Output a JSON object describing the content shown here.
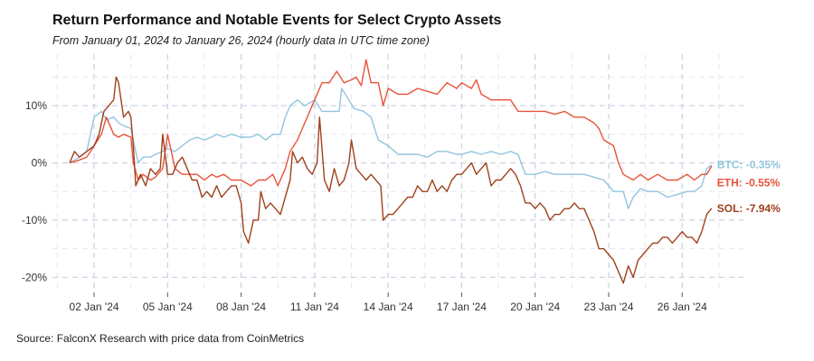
{
  "chart_data": {
    "type": "line",
    "title": "Return Performance and Notable Events for Select Crypto Assets",
    "subtitle": "From January 01, 2024 to January 26, 2024 (hourly data in UTC time zone)",
    "source": "Source: FalconX Research with price data from CoinMetrics",
    "xlabel": "",
    "ylabel": "",
    "x_ticks": [
      {
        "day": 2,
        "label": "02 Jan '24"
      },
      {
        "day": 5,
        "label": "05 Jan '24"
      },
      {
        "day": 8,
        "label": "08 Jan '24"
      },
      {
        "day": 11,
        "label": "11 Jan '24"
      },
      {
        "day": 14,
        "label": "14 Jan '24"
      },
      {
        "day": 17,
        "label": "17 Jan '24"
      },
      {
        "day": 20,
        "label": "20 Jan '24"
      },
      {
        "day": 23,
        "label": "23 Jan '24"
      },
      {
        "day": 26,
        "label": "26 Jan '24"
      }
    ],
    "xlim": [
      0.3,
      28.5
    ],
    "y_ticks": [
      {
        "value": 10,
        "label": "10%"
      },
      {
        "value": 0,
        "label": "0%"
      },
      {
        "value": -10,
        "label": "-10%"
      },
      {
        "value": -20,
        "label": "-20%"
      }
    ],
    "ylim": [
      -22,
      19
    ],
    "grid": true,
    "series": [
      {
        "name": "BTC",
        "color": "#92c5de",
        "end_label": "BTC: -0.35%",
        "points": [
          [
            1,
            0
          ],
          [
            1.4,
            1
          ],
          [
            1.7,
            2
          ],
          [
            2,
            8
          ],
          [
            2.3,
            9
          ],
          [
            2.5,
            7.5
          ],
          [
            2.8,
            8
          ],
          [
            3,
            7
          ],
          [
            3.2,
            6.5
          ],
          [
            3.5,
            6
          ],
          [
            3.6,
            4
          ],
          [
            3.8,
            0
          ],
          [
            4,
            1
          ],
          [
            4.3,
            1
          ],
          [
            4.5,
            1.5
          ],
          [
            4.8,
            2
          ],
          [
            5,
            2.5
          ],
          [
            5.3,
            2
          ],
          [
            5.6,
            3
          ],
          [
            5.9,
            4
          ],
          [
            6.2,
            4.5
          ],
          [
            6.5,
            4
          ],
          [
            6.8,
            4.5
          ],
          [
            7,
            5
          ],
          [
            7.3,
            4.5
          ],
          [
            7.6,
            5
          ],
          [
            8,
            4.5
          ],
          [
            8.4,
            4.5
          ],
          [
            8.7,
            5
          ],
          [
            9,
            4
          ],
          [
            9.3,
            5
          ],
          [
            9.6,
            5
          ],
          [
            9.8,
            8
          ],
          [
            10,
            10
          ],
          [
            10.3,
            11
          ],
          [
            10.6,
            10
          ],
          [
            11,
            11
          ],
          [
            11.3,
            9
          ],
          [
            11.6,
            9
          ],
          [
            12,
            9
          ],
          [
            12.1,
            13
          ],
          [
            12.4,
            11
          ],
          [
            12.6,
            9.5
          ],
          [
            13,
            9
          ],
          [
            13.3,
            8
          ],
          [
            13.6,
            4
          ],
          [
            14,
            3
          ],
          [
            14.4,
            1.5
          ],
          [
            14.8,
            1.5
          ],
          [
            15.2,
            1.5
          ],
          [
            15.6,
            1
          ],
          [
            16,
            2
          ],
          [
            16.4,
            2
          ],
          [
            16.8,
            1.5
          ],
          [
            17,
            1.5
          ],
          [
            17.4,
            2
          ],
          [
            17.8,
            1.5
          ],
          [
            18.2,
            2
          ],
          [
            18.6,
            1.5
          ],
          [
            19,
            2
          ],
          [
            19.3,
            1.5
          ],
          [
            19.6,
            -2
          ],
          [
            20,
            -2
          ],
          [
            20.4,
            -1.5
          ],
          [
            20.8,
            -2
          ],
          [
            21.2,
            -2
          ],
          [
            21.6,
            -2
          ],
          [
            22,
            -2
          ],
          [
            22.4,
            -2.5
          ],
          [
            22.8,
            -3
          ],
          [
            23.2,
            -5
          ],
          [
            23.6,
            -5
          ],
          [
            23.8,
            -8
          ],
          [
            24,
            -6
          ],
          [
            24.3,
            -4.5
          ],
          [
            24.6,
            -5
          ],
          [
            25,
            -5
          ],
          [
            25.4,
            -6
          ],
          [
            25.8,
            -5.5
          ],
          [
            26.2,
            -5
          ],
          [
            26.5,
            -5
          ],
          [
            26.8,
            -4
          ],
          [
            27,
            -1
          ],
          [
            27.2,
            -0.35
          ]
        ]
      },
      {
        "name": "ETH",
        "color": "#e8533a",
        "end_label": "ETH: -0.55%",
        "points": [
          [
            1,
            0
          ],
          [
            1.4,
            0.5
          ],
          [
            1.7,
            1
          ],
          [
            2,
            3
          ],
          [
            2.3,
            5
          ],
          [
            2.5,
            8
          ],
          [
            2.8,
            5
          ],
          [
            3,
            4.5
          ],
          [
            3.2,
            5
          ],
          [
            3.5,
            4.5
          ],
          [
            3.6,
            0
          ],
          [
            3.8,
            -3
          ],
          [
            4,
            -2
          ],
          [
            4.3,
            -3
          ],
          [
            4.5,
            -2.5
          ],
          [
            4.8,
            -1
          ],
          [
            5,
            5
          ],
          [
            5.3,
            -1
          ],
          [
            5.6,
            -2
          ],
          [
            5.9,
            -2
          ],
          [
            6.2,
            -2
          ],
          [
            6.5,
            -3
          ],
          [
            6.8,
            -2
          ],
          [
            7,
            -2.5
          ],
          [
            7.3,
            -2
          ],
          [
            7.6,
            -3
          ],
          [
            8,
            -3
          ],
          [
            8.4,
            -4
          ],
          [
            8.7,
            -3
          ],
          [
            9,
            -3
          ],
          [
            9.3,
            -2
          ],
          [
            9.5,
            -4
          ],
          [
            9.8,
            -1
          ],
          [
            10,
            2
          ],
          [
            10.3,
            4
          ],
          [
            10.6,
            7
          ],
          [
            11,
            11
          ],
          [
            11.3,
            14
          ],
          [
            11.6,
            14
          ],
          [
            11.9,
            16
          ],
          [
            12.2,
            14
          ],
          [
            12.5,
            14.5
          ],
          [
            12.7,
            15
          ],
          [
            12.9,
            13.5
          ],
          [
            13.1,
            18
          ],
          [
            13.3,
            14
          ],
          [
            13.6,
            14
          ],
          [
            13.8,
            10
          ],
          [
            14,
            13
          ],
          [
            14.4,
            12
          ],
          [
            14.8,
            12
          ],
          [
            15.2,
            13
          ],
          [
            15.6,
            12.5
          ],
          [
            16,
            12
          ],
          [
            16.4,
            14
          ],
          [
            16.8,
            13
          ],
          [
            17,
            14
          ],
          [
            17.4,
            13
          ],
          [
            17.6,
            14.5
          ],
          [
            17.8,
            12
          ],
          [
            18.2,
            11
          ],
          [
            18.6,
            11
          ],
          [
            19,
            11
          ],
          [
            19.3,
            9
          ],
          [
            19.6,
            9
          ],
          [
            20,
            9
          ],
          [
            20.4,
            9
          ],
          [
            20.8,
            8.5
          ],
          [
            21.2,
            9
          ],
          [
            21.6,
            8
          ],
          [
            22,
            8
          ],
          [
            22.4,
            7
          ],
          [
            22.6,
            6
          ],
          [
            22.8,
            4
          ],
          [
            23.2,
            3
          ],
          [
            23.4,
            0
          ],
          [
            23.6,
            -2
          ],
          [
            24,
            -3
          ],
          [
            24.3,
            -2
          ],
          [
            24.6,
            -3
          ],
          [
            25,
            -2
          ],
          [
            25.4,
            -3
          ],
          [
            25.8,
            -3
          ],
          [
            26.2,
            -2
          ],
          [
            26.5,
            -3
          ],
          [
            26.8,
            -2
          ],
          [
            27,
            -2
          ],
          [
            27.2,
            -0.55
          ]
        ]
      },
      {
        "name": "SOL",
        "color": "#a0401c",
        "end_label": "SOL: -7.94%",
        "points": [
          [
            1,
            0
          ],
          [
            1.2,
            2
          ],
          [
            1.4,
            1
          ],
          [
            1.7,
            2
          ],
          [
            2,
            3
          ],
          [
            2.2,
            5
          ],
          [
            2.4,
            9
          ],
          [
            2.6,
            10
          ],
          [
            2.8,
            11
          ],
          [
            2.9,
            15
          ],
          [
            3,
            14
          ],
          [
            3.2,
            8
          ],
          [
            3.4,
            9
          ],
          [
            3.5,
            8
          ],
          [
            3.6,
            3
          ],
          [
            3.7,
            -4
          ],
          [
            3.9,
            -2
          ],
          [
            4.1,
            -4
          ],
          [
            4.3,
            -1
          ],
          [
            4.5,
            -2
          ],
          [
            4.7,
            -1
          ],
          [
            4.8,
            5
          ],
          [
            5,
            -2
          ],
          [
            5.2,
            -2
          ],
          [
            5.4,
            0
          ],
          [
            5.6,
            1
          ],
          [
            5.8,
            -1
          ],
          [
            6,
            -3
          ],
          [
            6.2,
            -3
          ],
          [
            6.4,
            -6
          ],
          [
            6.6,
            -5
          ],
          [
            6.8,
            -6
          ],
          [
            7,
            -4
          ],
          [
            7.2,
            -6
          ],
          [
            7.4,
            -5
          ],
          [
            7.6,
            -4
          ],
          [
            7.8,
            -4
          ],
          [
            8,
            -7
          ],
          [
            8.1,
            -12
          ],
          [
            8.3,
            -14
          ],
          [
            8.5,
            -10
          ],
          [
            8.7,
            -10
          ],
          [
            8.8,
            -5
          ],
          [
            9,
            -8
          ],
          [
            9.2,
            -7
          ],
          [
            9.4,
            -8
          ],
          [
            9.6,
            -9
          ],
          [
            9.8,
            -6
          ],
          [
            10,
            -3
          ],
          [
            10.1,
            2
          ],
          [
            10.3,
            0
          ],
          [
            10.5,
            1
          ],
          [
            10.7,
            -1
          ],
          [
            10.9,
            -2
          ],
          [
            11.1,
            0
          ],
          [
            11.2,
            8
          ],
          [
            11.4,
            -3
          ],
          [
            11.6,
            -5
          ],
          [
            11.8,
            -1
          ],
          [
            12,
            -4
          ],
          [
            12.2,
            -3
          ],
          [
            12.4,
            0
          ],
          [
            12.5,
            4
          ],
          [
            12.7,
            -1
          ],
          [
            12.9,
            -2
          ],
          [
            13.1,
            -3
          ],
          [
            13.3,
            -2
          ],
          [
            13.5,
            -3
          ],
          [
            13.7,
            -4
          ],
          [
            13.8,
            -10
          ],
          [
            14,
            -9
          ],
          [
            14.2,
            -9
          ],
          [
            14.4,
            -8
          ],
          [
            14.6,
            -7
          ],
          [
            14.8,
            -6
          ],
          [
            15,
            -6
          ],
          [
            15.2,
            -4
          ],
          [
            15.4,
            -5
          ],
          [
            15.6,
            -5
          ],
          [
            15.8,
            -3
          ],
          [
            16,
            -5
          ],
          [
            16.2,
            -4
          ],
          [
            16.4,
            -5
          ],
          [
            16.6,
            -3
          ],
          [
            16.8,
            -2
          ],
          [
            17,
            -2
          ],
          [
            17.2,
            -1
          ],
          [
            17.4,
            0
          ],
          [
            17.6,
            -2
          ],
          [
            17.8,
            -1
          ],
          [
            18,
            0
          ],
          [
            18.2,
            -4
          ],
          [
            18.4,
            -3
          ],
          [
            18.6,
            -3
          ],
          [
            18.8,
            -2
          ],
          [
            19,
            -1
          ],
          [
            19.2,
            -2
          ],
          [
            19.4,
            -4
          ],
          [
            19.6,
            -7
          ],
          [
            19.8,
            -7
          ],
          [
            20,
            -8
          ],
          [
            20.2,
            -7
          ],
          [
            20.4,
            -8
          ],
          [
            20.6,
            -10
          ],
          [
            20.8,
            -9
          ],
          [
            21,
            -9
          ],
          [
            21.2,
            -8
          ],
          [
            21.4,
            -8
          ],
          [
            21.6,
            -7
          ],
          [
            21.8,
            -8
          ],
          [
            22,
            -8
          ],
          [
            22.2,
            -10
          ],
          [
            22.4,
            -12
          ],
          [
            22.6,
            -15
          ],
          [
            22.8,
            -15
          ],
          [
            23,
            -16
          ],
          [
            23.2,
            -17
          ],
          [
            23.4,
            -19
          ],
          [
            23.6,
            -21
          ],
          [
            23.8,
            -18
          ],
          [
            24,
            -20
          ],
          [
            24.2,
            -17
          ],
          [
            24.4,
            -16
          ],
          [
            24.6,
            -15
          ],
          [
            24.8,
            -14
          ],
          [
            25,
            -14
          ],
          [
            25.2,
            -13
          ],
          [
            25.4,
            -13
          ],
          [
            25.6,
            -14
          ],
          [
            25.8,
            -13
          ],
          [
            26,
            -12
          ],
          [
            26.2,
            -13
          ],
          [
            26.4,
            -13
          ],
          [
            26.6,
            -14
          ],
          [
            26.8,
            -12
          ],
          [
            27,
            -9
          ],
          [
            27.2,
            -7.94
          ]
        ]
      }
    ]
  }
}
